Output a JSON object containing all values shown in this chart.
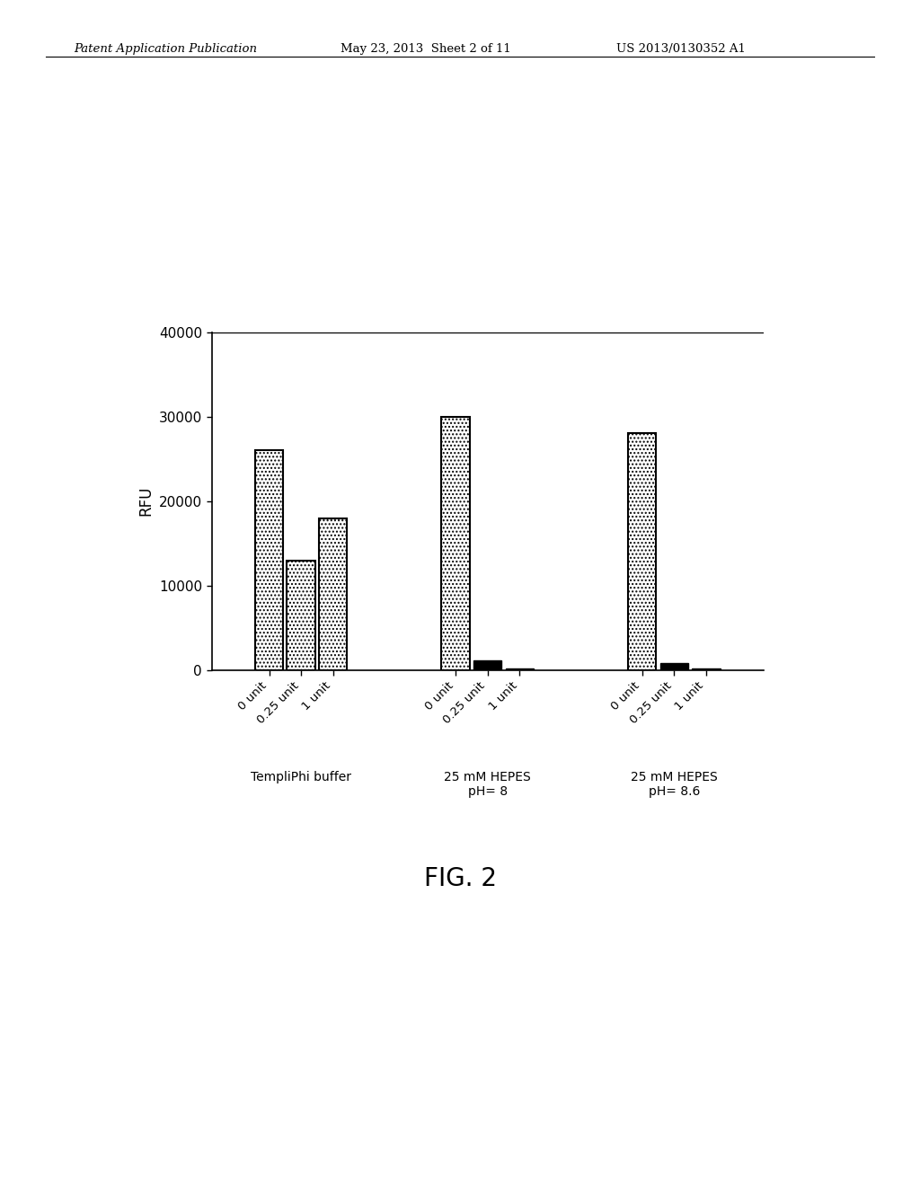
{
  "groups": [
    "TempliPhi buffer",
    "25 mM HEPES\npH= 8",
    "25 mM HEPES\npH= 8.6"
  ],
  "bar_labels": [
    "0 unit",
    "0.25 unit",
    "1 unit"
  ],
  "values": [
    [
      26000,
      13000,
      18000
    ],
    [
      30000,
      1100,
      200
    ],
    [
      28000,
      800,
      200
    ]
  ],
  "ylabel": "RFU",
  "ylim": [
    0,
    40000
  ],
  "yticks": [
    0,
    10000,
    20000,
    30000,
    40000
  ],
  "fig_caption": "FIG. 2",
  "header_left": "Patent Application Publication",
  "header_mid": "May 23, 2013  Sheet 2 of 11",
  "header_right": "US 2013/0130352 A1",
  "bar_width": 0.18,
  "open_bar_color": "#ffffff",
  "open_bar_hatch": "....",
  "solid_bar_color": "#000000",
  "solid_threshold": 3000,
  "background_color": "#ffffff"
}
